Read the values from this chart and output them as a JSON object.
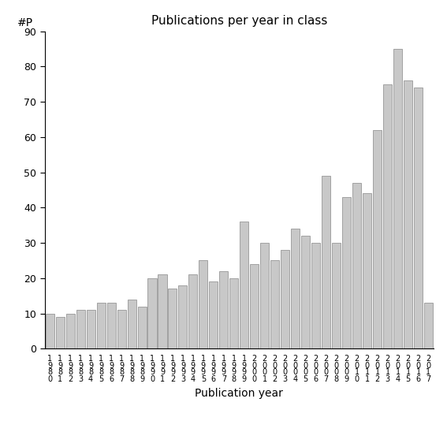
{
  "title": "Publications per year in class",
  "xlabel": "Publication year",
  "ylabel": "#P",
  "ylim": [
    0,
    90
  ],
  "yticks": [
    0,
    10,
    20,
    30,
    40,
    50,
    60,
    70,
    80,
    90
  ],
  "years": [
    "1\n9\n8\n0",
    "1\n9\n8\n1",
    "1\n9\n8\n2",
    "1\n9\n8\n3",
    "1\n9\n8\n4",
    "1\n9\n8\n5",
    "1\n9\n8\n6",
    "1\n9\n8\n7",
    "1\n9\n8\n8",
    "1\n9\n8\n9",
    "1\n9\n9\n0",
    "1\n9\n9\n1",
    "1\n9\n9\n2",
    "1\n9\n9\n3",
    "1\n9\n9\n4",
    "1\n9\n9\n5",
    "1\n9\n9\n6",
    "1\n9\n9\n7",
    "1\n9\n9\n8",
    "1\n9\n9\n9",
    "2\n0\n0\n0",
    "2\n0\n0\n1",
    "2\n0\n0\n2",
    "2\n0\n0\n3",
    "2\n0\n0\n4",
    "2\n0\n0\n5",
    "2\n0\n0\n6",
    "2\n0\n0\n7",
    "2\n0\n0\n8",
    "2\n0\n0\n9",
    "2\n0\n1\n0",
    "2\n0\n1\n1",
    "2\n0\n1\n2",
    "2\n0\n1\n3",
    "2\n0\n1\n4",
    "2\n0\n1\n5",
    "2\n0\n1\n6",
    "2\n0\n1\n7"
  ],
  "values": [
    10,
    9,
    10,
    11,
    11,
    13,
    13,
    11,
    14,
    12,
    20,
    21,
    17,
    18,
    21,
    25,
    19,
    22,
    20,
    36,
    24,
    30,
    25,
    28,
    34,
    32,
    30,
    49,
    30,
    43,
    47,
    44,
    62,
    75,
    85,
    76,
    74,
    13
  ],
  "bar_color": "#c8c8c8",
  "bar_edge_color": "#888888",
  "background_color": "#ffffff",
  "title_fontsize": 11,
  "tick_fontsize": 9,
  "xlabel_fontsize": 10,
  "ylabel_fontsize": 10
}
